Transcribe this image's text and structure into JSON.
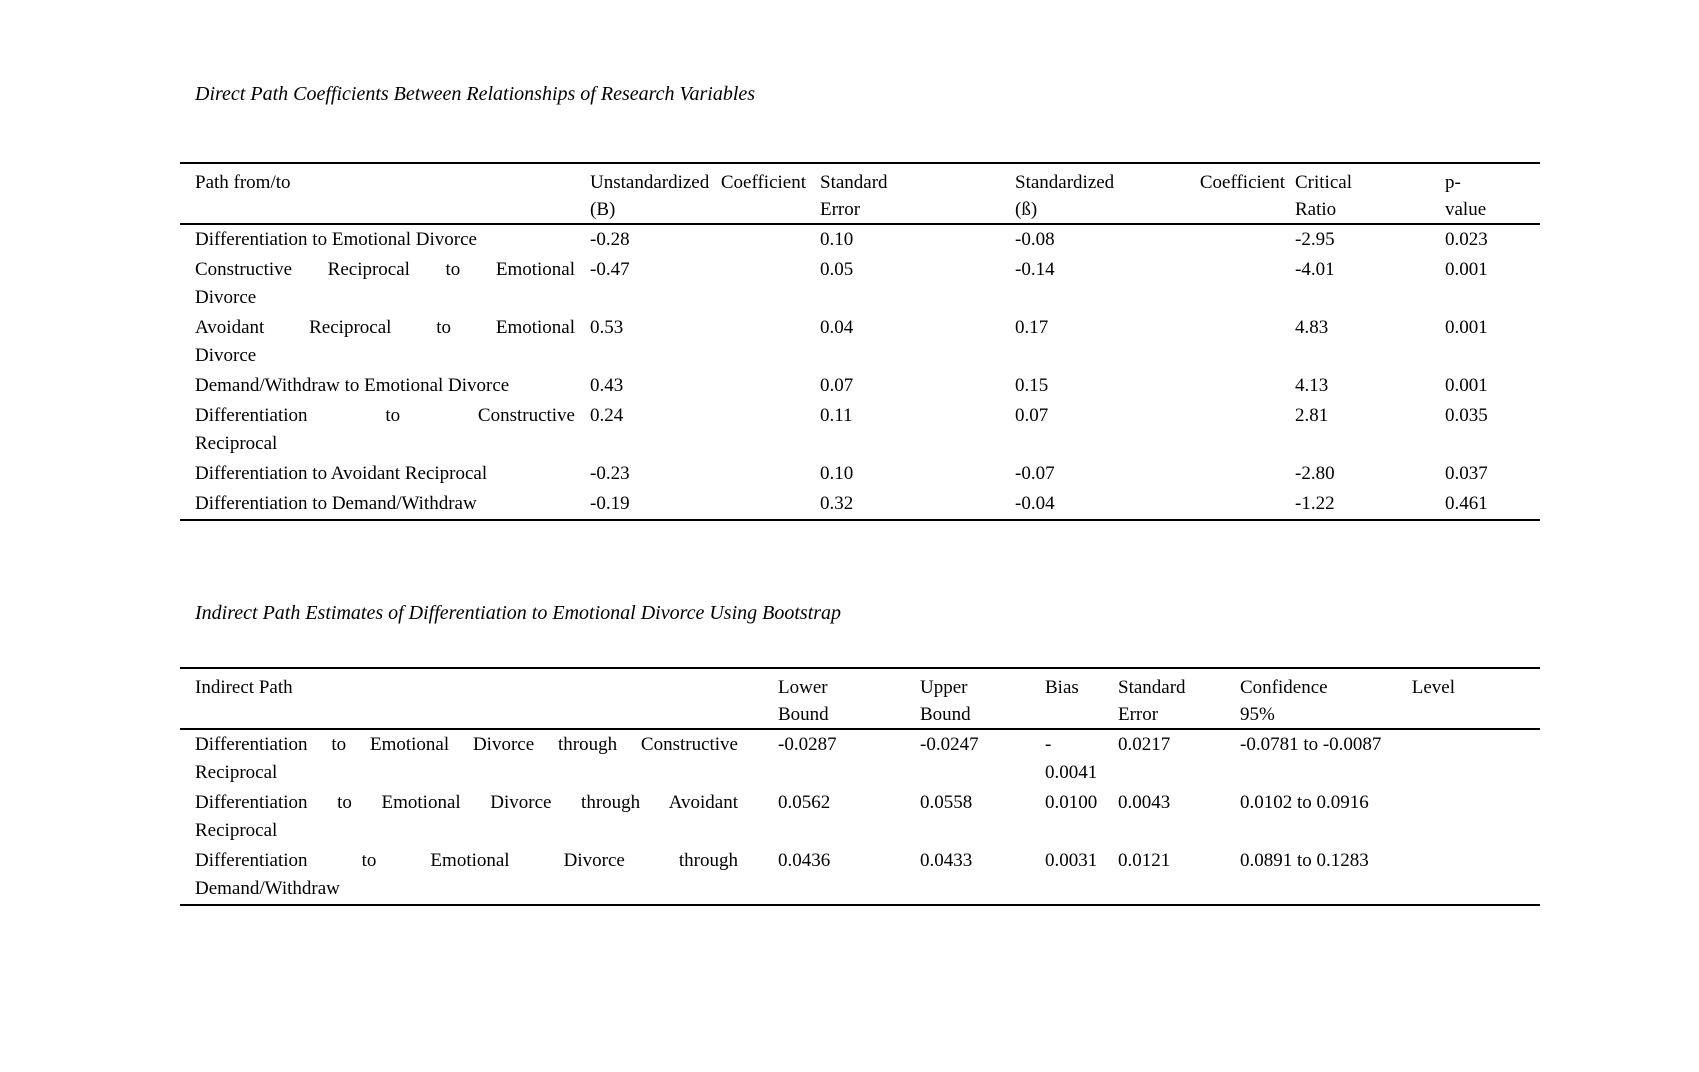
{
  "page": {
    "background_color": "#ffffff",
    "text_color": "#000000"
  },
  "tables": [
    {
      "title": "Direct Path Coefficients Between Relationships of Research Variables",
      "columns": [
        {
          "label": "Path from/to",
          "lines": [
            "Path from/to"
          ]
        },
        {
          "label": "Unstandardized Coefficient (B)",
          "lines": [
            "Unstandardized Coefficient",
            "(B)"
          ]
        },
        {
          "label": "Standard Error",
          "lines": [
            "Standard",
            "Error"
          ]
        },
        {
          "label": "Standardized Coefficient (ß)",
          "lines": [
            "Standardized Coefficient",
            "(ß)"
          ]
        },
        {
          "label": "Critical Ratio",
          "lines": [
            "Critical",
            "Ratio"
          ]
        },
        {
          "label": "p-value",
          "lines": [
            "p-",
            "value"
          ]
        }
      ],
      "rows": [
        {
          "path_lines": [
            "Differentiation to Emotional Divorce"
          ],
          "values": [
            [
              "-0.28"
            ],
            [
              "0.10"
            ],
            [
              "-0.08"
            ],
            [
              "-2.95"
            ],
            [
              "0.023"
            ]
          ]
        },
        {
          "path_lines": [
            "Constructive Reciprocal to Emotional",
            "Divorce"
          ],
          "values": [
            [
              "-0.47"
            ],
            [
              "0.05"
            ],
            [
              "-0.14"
            ],
            [
              "-4.01"
            ],
            [
              "0.001"
            ]
          ]
        },
        {
          "path_lines": [
            "Avoidant Reciprocal to Emotional",
            "Divorce"
          ],
          "values": [
            [
              "0.53"
            ],
            [
              "0.04"
            ],
            [
              "0.17"
            ],
            [
              "4.83"
            ],
            [
              "0.001"
            ]
          ]
        },
        {
          "path_lines": [
            "Demand/Withdraw to Emotional Divorce"
          ],
          "values": [
            [
              "0.43"
            ],
            [
              "0.07"
            ],
            [
              "0.15"
            ],
            [
              "4.13"
            ],
            [
              "0.001"
            ]
          ]
        },
        {
          "path_lines": [
            "Differentiation to Constructive",
            "Reciprocal"
          ],
          "values": [
            [
              "0.24"
            ],
            [
              "0.11"
            ],
            [
              "0.07"
            ],
            [
              "2.81"
            ],
            [
              "0.035"
            ]
          ]
        },
        {
          "path_lines": [
            "Differentiation to Avoidant Reciprocal"
          ],
          "values": [
            [
              "-0.23"
            ],
            [
              "0.10"
            ],
            [
              "-0.07"
            ],
            [
              "-2.80"
            ],
            [
              "0.037"
            ]
          ]
        },
        {
          "path_lines": [
            "Differentiation to Demand/Withdraw"
          ],
          "values": [
            [
              "-0.19"
            ],
            [
              "0.32"
            ],
            [
              "-0.04"
            ],
            [
              "-1.22"
            ],
            [
              "0.461"
            ]
          ]
        }
      ]
    },
    {
      "title": "Indirect Path Estimates of Differentiation to Emotional Divorce Using Bootstrap",
      "columns": [
        {
          "label": "Indirect Path",
          "lines": [
            "Indirect Path"
          ]
        },
        {
          "label": "Lower Bound",
          "lines": [
            "Lower",
            "Bound"
          ]
        },
        {
          "label": "Upper Bound",
          "lines": [
            "Upper",
            "Bound"
          ]
        },
        {
          "label": "Bias",
          "lines": [
            "Bias"
          ]
        },
        {
          "label": "Standard Error",
          "lines": [
            "Standard",
            "Error"
          ]
        },
        {
          "label": "Confidence Level 95%",
          "lines": [
            "Confidence Level",
            "95%"
          ]
        }
      ],
      "rows": [
        {
          "path_lines": [
            "Differentiation to Emotional Divorce through Constructive",
            "Reciprocal"
          ],
          "values": [
            [
              "-0.0287"
            ],
            [
              "-0.0247"
            ],
            [
              "-",
              "0.0041"
            ],
            [
              "0.0217"
            ],
            [
              "-0.0781 to -0.0087"
            ]
          ]
        },
        {
          "path_lines": [
            "Differentiation to Emotional Divorce through Avoidant",
            "Reciprocal"
          ],
          "values": [
            [
              "0.0562"
            ],
            [
              "0.0558"
            ],
            [
              "0.0100"
            ],
            [
              "0.0043"
            ],
            [
              "0.0102 to 0.0916"
            ]
          ]
        },
        {
          "path_lines": [
            "Differentiation to Emotional Divorce through",
            "Demand/Withdraw"
          ],
          "values": [
            [
              "0.0436"
            ],
            [
              "0.0433"
            ],
            [
              "0.0031"
            ],
            [
              "0.0121"
            ],
            [
              "0.0891 to 0.1283"
            ]
          ]
        }
      ]
    }
  ]
}
